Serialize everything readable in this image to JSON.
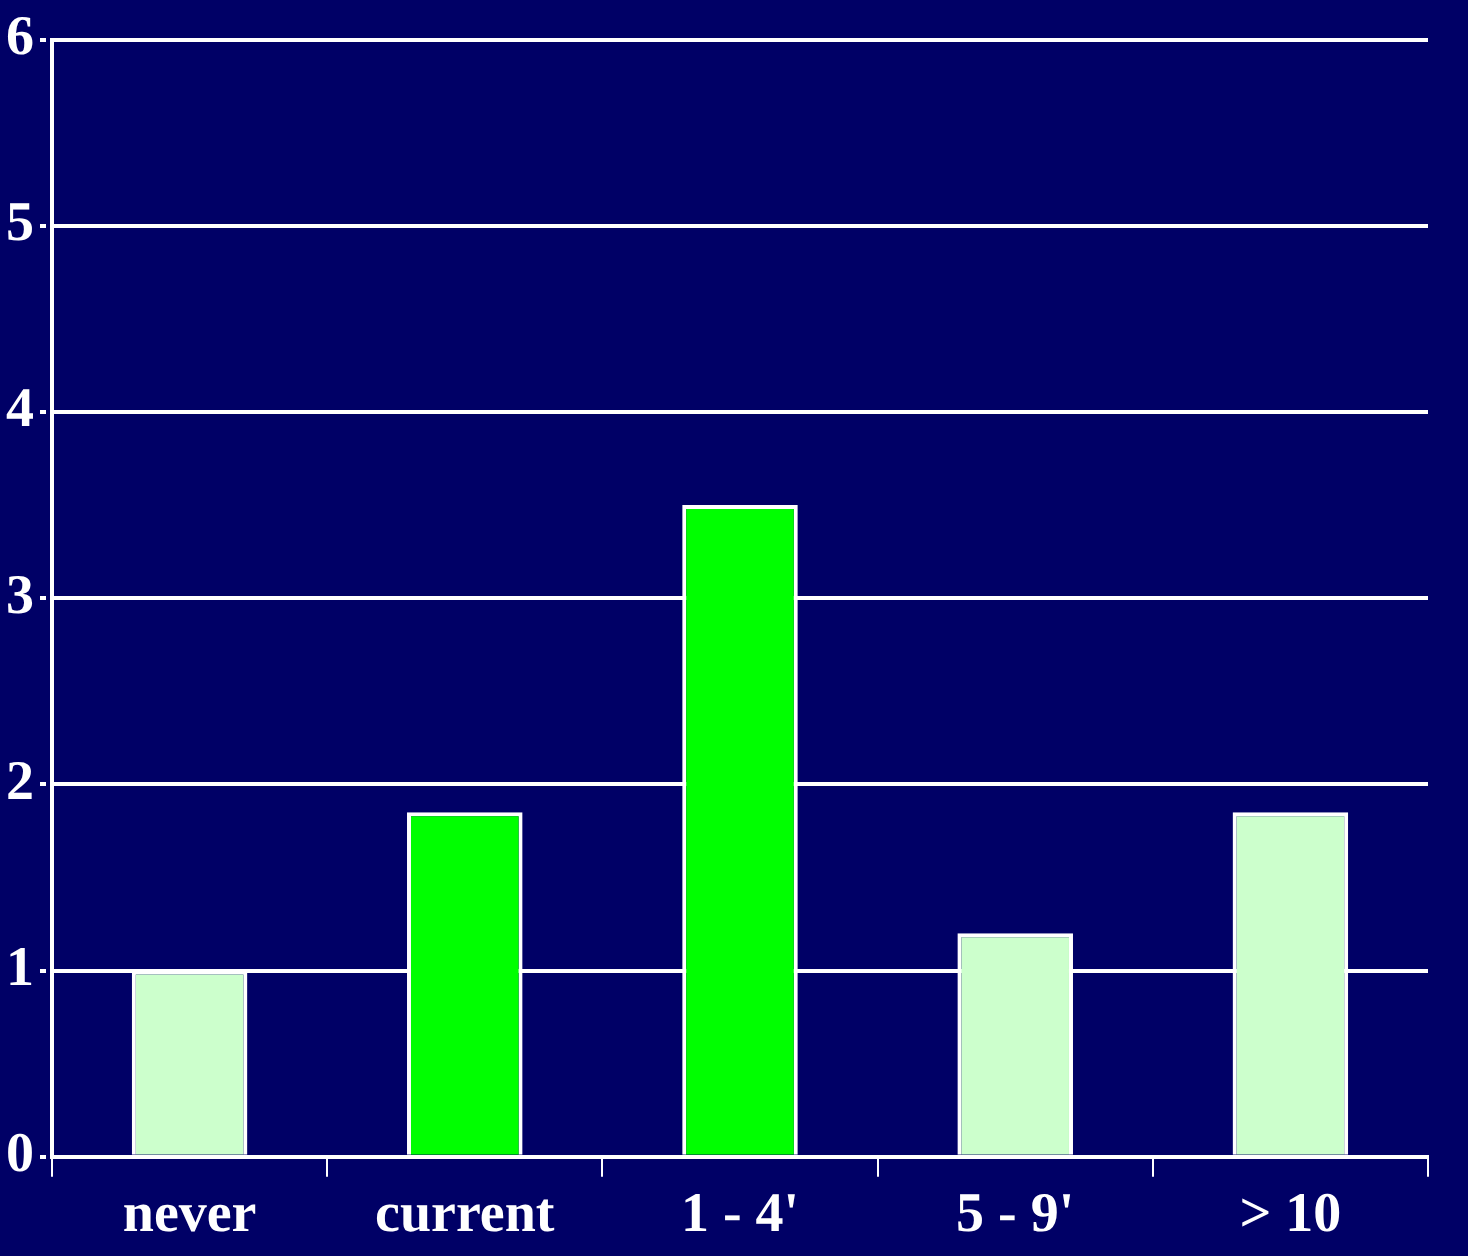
{
  "chart_data": {
    "type": "bar",
    "categories": [
      "never",
      "current",
      "1 - 4'",
      "5 - 9'",
      "> 10"
    ],
    "values": [
      1.0,
      1.85,
      3.5,
      1.2,
      1.85
    ],
    "colors": [
      "#ccffcc",
      "#00ff00",
      "#00ff00",
      "#ccffcc",
      "#ccffcc"
    ],
    "ylim": [
      0,
      6
    ],
    "yticks": [
      0,
      1,
      2,
      3,
      4,
      5,
      6
    ],
    "grid": "y",
    "line_style": "dotted"
  }
}
